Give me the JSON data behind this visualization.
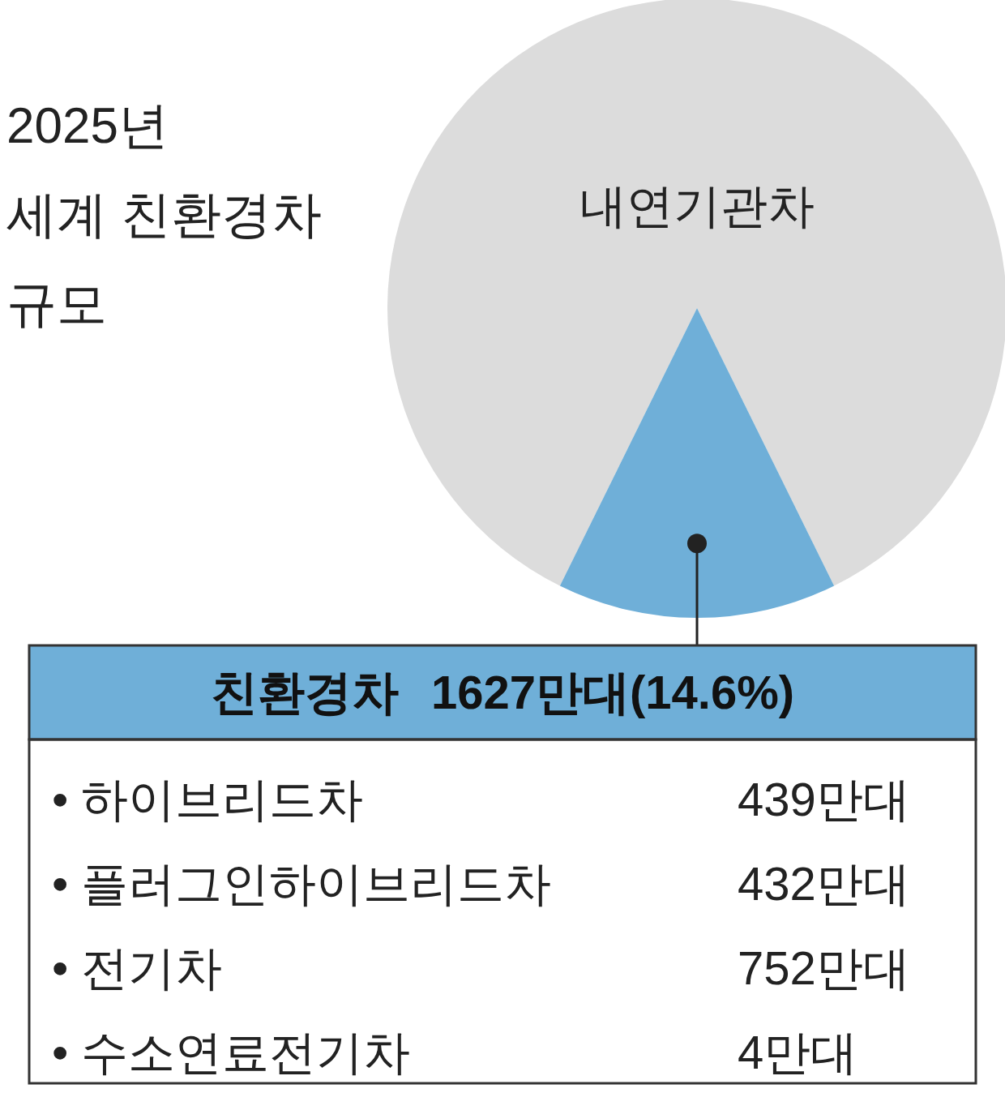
{
  "chart_data": [
    {
      "type": "pie",
      "title": "2025년\n세계 친환경차\n규모",
      "categories": [
        "내연기관차",
        "친환경차"
      ],
      "values": [
        85.4,
        14.6
      ],
      "colors": [
        "#dcdcdc",
        "#6fafd8"
      ],
      "value_labels": [
        null,
        "1627만대(14.6%)"
      ]
    },
    {
      "type": "other",
      "categories": [
        "• 하이브리드차",
        "• 플러그인하이브리드차",
        "• 전기차",
        "• 수소연료전기차"
      ],
      "value_labels": [
        "439만대",
        "432만대",
        "752만대",
        "4만대"
      ]
    }
  ]
}
